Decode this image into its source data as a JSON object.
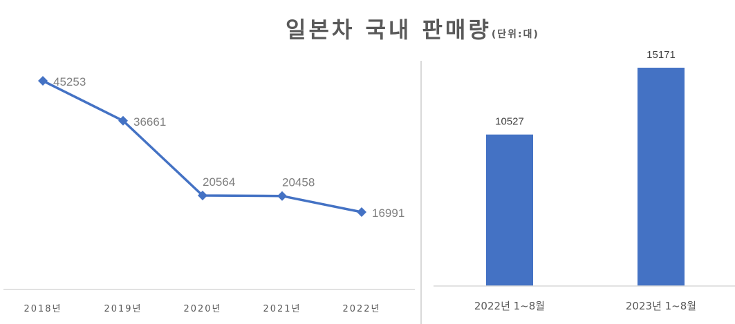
{
  "title": {
    "main": "일본차 국내 판매량",
    "unit": "(단위:대)"
  },
  "colors": {
    "series": "#4472c4",
    "axis": "#d9d9d9",
    "label": "#7f7f7f"
  },
  "chart_data": [
    {
      "type": "line",
      "title": "일본차 국내 판매량 (단위:대)",
      "categories": [
        "2018년",
        "2019년",
        "2020년",
        "2021년",
        "2022년"
      ],
      "values": [
        45253,
        36661,
        20564,
        20458,
        16991
      ],
      "labels": [
        "45253",
        "36661",
        "20564",
        "20458",
        "16991"
      ],
      "xlabel": "",
      "ylabel": "",
      "grid": false,
      "legend": "none",
      "marker": "diamond"
    },
    {
      "type": "bar",
      "categories": [
        "2022년 1~8월",
        "2023년 1~8월"
      ],
      "values": [
        10527,
        15171
      ],
      "labels": [
        "10527",
        "15171"
      ],
      "xlabel": "",
      "ylabel": "",
      "grid": false,
      "legend": "none"
    }
  ]
}
